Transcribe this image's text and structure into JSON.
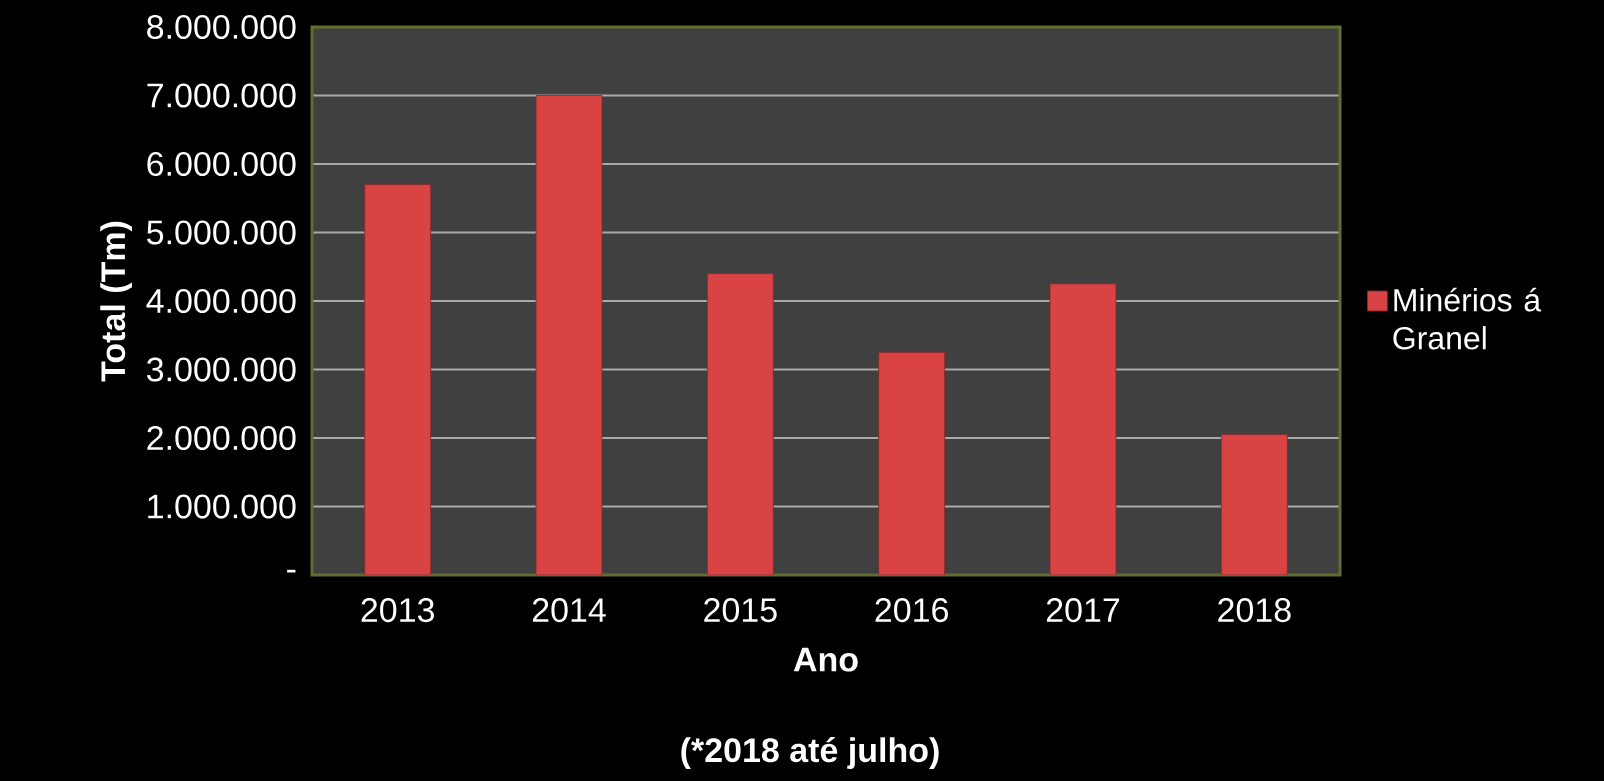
{
  "chart_data": {
    "type": "bar",
    "categories": [
      "2013",
      "2014",
      "2015",
      "2016",
      "2017",
      "2018"
    ],
    "series": [
      {
        "name": "Minérios á Granel",
        "color": "#d94343",
        "values": [
          5700000,
          7000000,
          4400000,
          3250000,
          4250000,
          2050000
        ]
      }
    ],
    "ylabel": "Total (Tm)",
    "xlabel": "Ano",
    "annotations": [
      "(*2018 até julho)"
    ],
    "ylim": [
      0,
      8000000
    ],
    "yticks": [
      {
        "value": 0,
        "label": "-"
      },
      {
        "value": 1000000,
        "label": "1.000.000"
      },
      {
        "value": 2000000,
        "label": "2.000.000"
      },
      {
        "value": 3000000,
        "label": "3.000.000"
      },
      {
        "value": 4000000,
        "label": "4.000.000"
      },
      {
        "value": 5000000,
        "label": "5.000.000"
      },
      {
        "value": 6000000,
        "label": "6.000.000"
      },
      {
        "value": 7000000,
        "label": "7.000.000"
      },
      {
        "value": 8000000,
        "label": "8.000.000"
      }
    ],
    "grid": "y",
    "legend": "right"
  }
}
